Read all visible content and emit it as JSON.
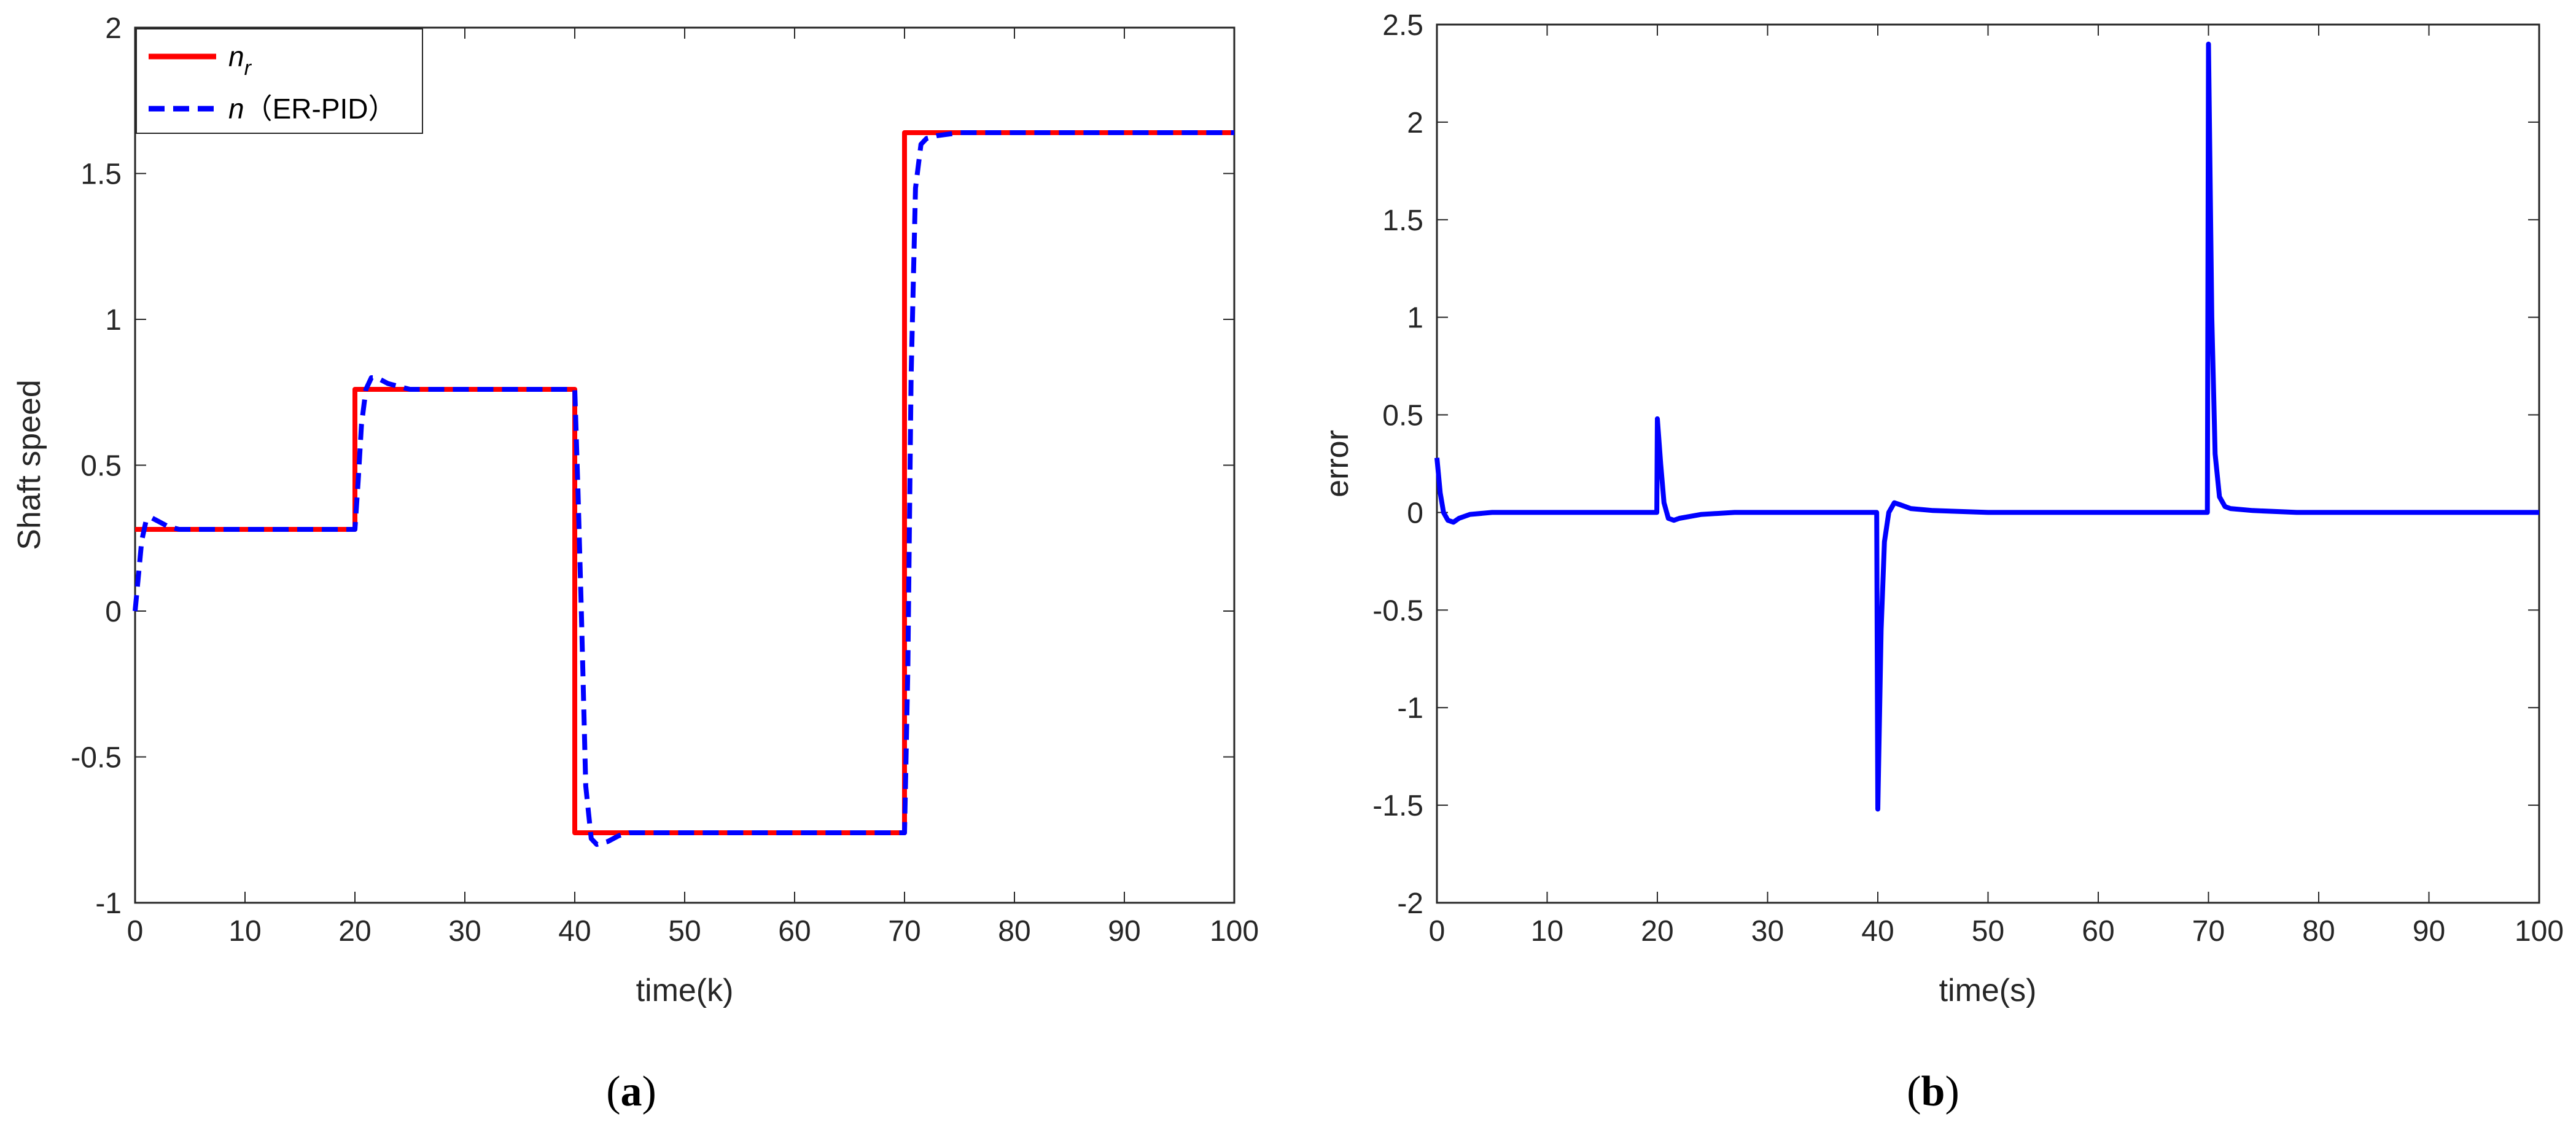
{
  "chart_data": [
    {
      "type": "line",
      "panel_label": "(a)",
      "panel_letter": "a",
      "xlabel": "time(k)",
      "ylabel": "Shaft speed",
      "xlim": [
        0,
        100
      ],
      "ylim": [
        -1,
        2
      ],
      "xticks": [
        0,
        10,
        20,
        30,
        40,
        50,
        60,
        70,
        80,
        90,
        100
      ],
      "yticks": [
        -1,
        -0.5,
        0,
        0.5,
        1,
        1.5,
        2
      ],
      "grid": false,
      "legend": "top-left",
      "series": [
        {
          "name": "n_r",
          "legend_main": "n",
          "legend_sub": "r",
          "color": "#ff0000",
          "style": "solid",
          "x": [
            0,
            20,
            20,
            40,
            40,
            70,
            70,
            100
          ],
          "y": [
            0.28,
            0.28,
            0.76,
            0.76,
            -0.76,
            -0.76,
            1.64,
            1.64
          ]
        },
        {
          "name": "n（ER-PID）",
          "legend_main": "n",
          "legend_rest": "（ER-PID）",
          "color": "#0000ff",
          "style": "dashed",
          "x": [
            0,
            0.3,
            0.6,
            1,
            1.5,
            2,
            3,
            4,
            5,
            20,
            20.3,
            20.6,
            21,
            21.5,
            22,
            23,
            24,
            25,
            40,
            40.3,
            40.6,
            41,
            41.5,
            42,
            43,
            44,
            45,
            70,
            70.3,
            70.6,
            71,
            71.5,
            72,
            73,
            75,
            100
          ],
          "y": [
            0,
            0.12,
            0.24,
            0.31,
            0.32,
            0.31,
            0.29,
            0.28,
            0.28,
            0.28,
            0.45,
            0.64,
            0.76,
            0.8,
            0.8,
            0.78,
            0.77,
            0.76,
            0.76,
            0.4,
            0.0,
            -0.6,
            -0.78,
            -0.8,
            -0.79,
            -0.77,
            -0.76,
            -0.76,
            -0.2,
            0.8,
            1.45,
            1.6,
            1.62,
            1.63,
            1.64,
            1.64
          ]
        }
      ]
    },
    {
      "type": "line",
      "panel_label": "(b)",
      "panel_letter": "b",
      "xlabel": "time(s)",
      "ylabel": "error",
      "xlim": [
        0,
        100
      ],
      "ylim": [
        -2,
        2.5
      ],
      "xticks": [
        0,
        10,
        20,
        30,
        40,
        50,
        60,
        70,
        80,
        90,
        100
      ],
      "yticks": [
        -2,
        -1.5,
        -1,
        -0.5,
        0,
        0.5,
        1,
        1.5,
        2,
        2.5
      ],
      "grid": false,
      "series": [
        {
          "color": "#0000ff",
          "style": "solid",
          "x": [
            0,
            0.3,
            0.6,
            1,
            1.5,
            2,
            3,
            5,
            19.95,
            20,
            20.3,
            20.6,
            21,
            21.5,
            22,
            24,
            27,
            39.9,
            40,
            40.3,
            40.6,
            41,
            41.5,
            42,
            43,
            45,
            50,
            69.9,
            70,
            70.3,
            70.6,
            71,
            71.5,
            72,
            74,
            78,
            100
          ],
          "y": [
            0.28,
            0.1,
            0.0,
            -0.04,
            -0.05,
            -0.03,
            -0.01,
            0.0,
            0.0,
            0.48,
            0.25,
            0.05,
            -0.03,
            -0.04,
            -0.03,
            -0.01,
            0.0,
            0.0,
            -1.52,
            -0.6,
            -0.15,
            0.0,
            0.05,
            0.04,
            0.02,
            0.01,
            0.0,
            0.0,
            2.4,
            1.0,
            0.3,
            0.08,
            0.03,
            0.02,
            0.01,
            0.0,
            0.0
          ]
        }
      ]
    }
  ]
}
